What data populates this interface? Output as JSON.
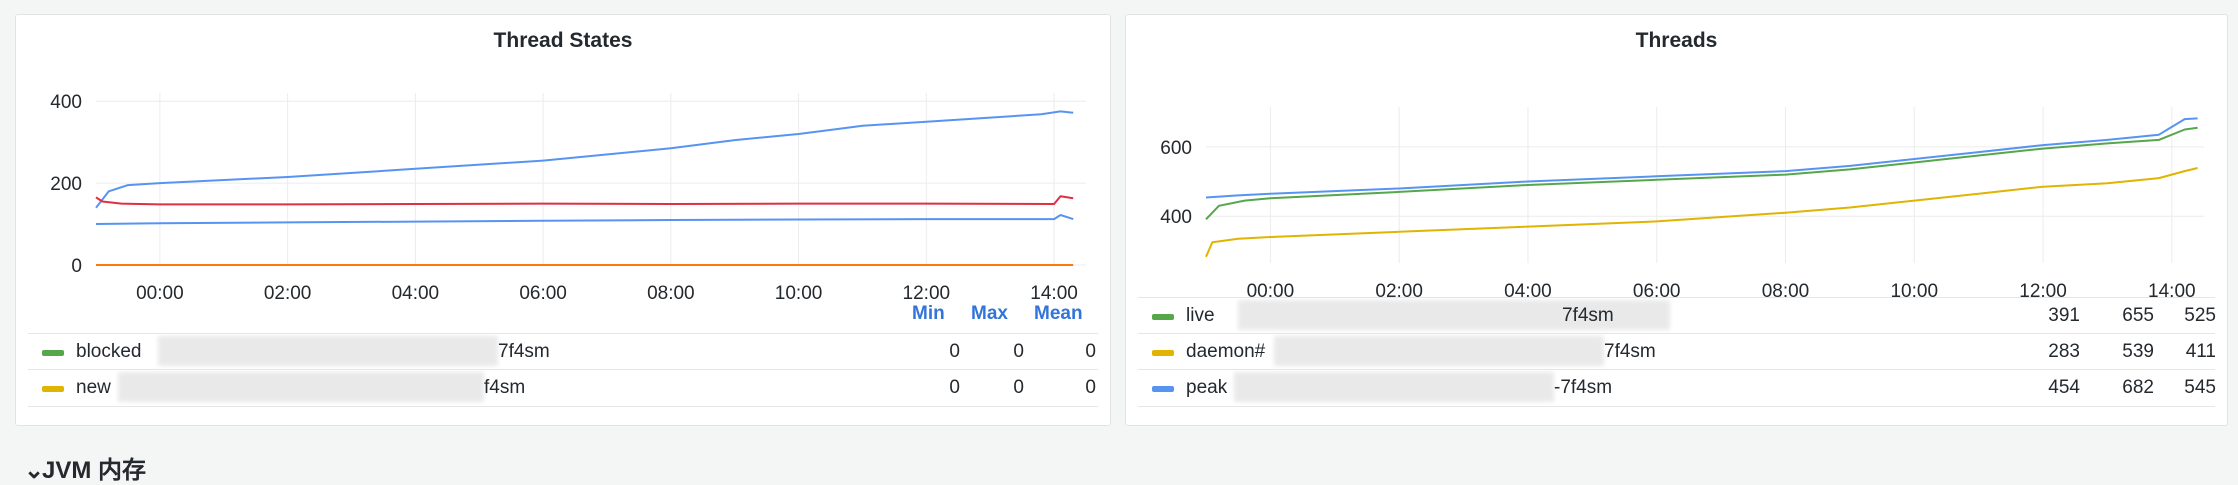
{
  "panels": [
    {
      "title": "Thread States",
      "legend_headers": [
        "Min",
        "Max",
        "Mean"
      ],
      "chart_data": {
        "type": "line",
        "title": "Thread States",
        "x_ticks": [
          "00:00",
          "02:00",
          "04:00",
          "06:00",
          "08:00",
          "10:00",
          "12:00",
          "14:00"
        ],
        "y_ticks": [
          0,
          200,
          400
        ],
        "ylim": [
          0,
          420
        ],
        "xlim": [
          -1.0,
          14.5
        ],
        "grid": true,
        "legend_placement": "bottom",
        "series": [
          {
            "color": "#5794f2",
            "x": [
              -1.0,
              -0.8,
              -0.5,
              0,
              2,
              4,
              6,
              8,
              9,
              10,
              11,
              12,
              13,
              13.8,
              14.1,
              14.3
            ],
            "values": [
              140,
              180,
              195,
              200,
              215,
              235,
              255,
              285,
              305,
              320,
              340,
              350,
              360,
              368,
              375,
              372
            ]
          },
          {
            "color": "#e02f44",
            "x": [
              -1.0,
              -0.9,
              -0.6,
              0,
              2,
              4,
              6,
              8,
              10,
              12,
              14,
              14.1,
              14.3
            ],
            "values": [
              165,
              155,
              150,
              148,
              148,
              149,
              150,
              149,
              150,
              150,
              149,
              168,
              163
            ]
          },
          {
            "color": "#5794f2",
            "x": [
              -1.0,
              0,
              2,
              4,
              6,
              8,
              10,
              12,
              14,
              14.1,
              14.3
            ],
            "values": [
              100,
              102,
              104,
              106,
              108,
              110,
              111,
              112,
              112,
              122,
              112
            ]
          },
          {
            "color": "#ff780a",
            "x": [
              -1.0,
              14.3
            ],
            "values": [
              0,
              0
            ]
          }
        ]
      },
      "legend": [
        {
          "name": "blocked",
          "suffix": "7f4sm",
          "color": "#56a64b",
          "min": "0",
          "max": "0",
          "mean": "0"
        },
        {
          "name": "new",
          "suffix": "f4sm",
          "color": "#e0b400",
          "min": "0",
          "max": "0",
          "mean": "0"
        }
      ]
    },
    {
      "title": "Threads",
      "chart_data": {
        "type": "line",
        "title": "Threads",
        "x_ticks": [
          "00:00",
          "02:00",
          "04:00",
          "06:00",
          "08:00",
          "10:00",
          "12:00",
          "14:00"
        ],
        "y_ticks": [
          400,
          600
        ],
        "ylim": [
          265,
          715
        ],
        "xlim": [
          -1.0,
          14.5
        ],
        "grid": true,
        "legend_placement": "bottom",
        "series": [
          {
            "name": "live",
            "color": "#56a64b",
            "x": [
              -1.0,
              -0.8,
              -0.4,
              0,
              2,
              4,
              6,
              8,
              9,
              10,
              11,
              12,
              13,
              13.8,
              14.2,
              14.4
            ],
            "values": [
              391,
              430,
              445,
              452,
              470,
              490,
              505,
              520,
              535,
              555,
              575,
              595,
              610,
              620,
              650,
              655
            ]
          },
          {
            "name": "daemon",
            "color": "#e0b400",
            "x": [
              -1.0,
              -0.9,
              -0.5,
              0,
              2,
              4,
              6,
              8,
              9,
              10,
              11,
              12,
              13,
              13.8,
              14.2,
              14.4
            ],
            "values": [
              283,
              325,
              335,
              340,
              355,
              370,
              385,
              410,
              425,
              445,
              465,
              485,
              495,
              510,
              530,
              539
            ]
          },
          {
            "name": "peak",
            "color": "#5794f2",
            "x": [
              -1.0,
              -0.5,
              0,
              2,
              4,
              6,
              8,
              9,
              10,
              11,
              12,
              13,
              13.8,
              14.2,
              14.4
            ],
            "values": [
              454,
              460,
              465,
              480,
              500,
              515,
              530,
              545,
              565,
              585,
              605,
              620,
              635,
              680,
              682
            ]
          }
        ]
      },
      "legend": [
        {
          "name": "live",
          "suffix": "7f4sm",
          "color": "#56a64b",
          "min": "391",
          "max": "655",
          "mean": "525"
        },
        {
          "name": "daemon#",
          "suffix": "7f4sm",
          "color": "#e0b400",
          "min": "283",
          "max": "539",
          "mean": "411"
        },
        {
          "name": "peak",
          "suffix": "-7f4sm",
          "color": "#5794f2",
          "min": "454",
          "max": "682",
          "mean": "545"
        }
      ]
    }
  ],
  "section": {
    "label": "JVM 内存",
    "chevron_icon": "chevron-down-icon"
  }
}
